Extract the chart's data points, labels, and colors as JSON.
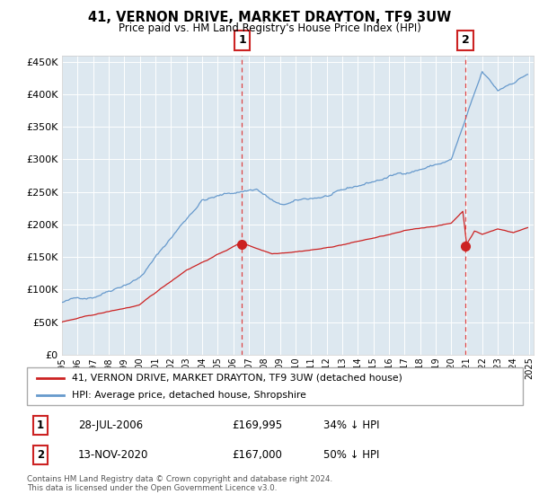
{
  "title": "41, VERNON DRIVE, MARKET DRAYTON, TF9 3UW",
  "subtitle": "Price paid vs. HM Land Registry's House Price Index (HPI)",
  "bg_color": "#ffffff",
  "plot_bg_color": "#dde8f0",
  "ylim": [
    0,
    460000
  ],
  "yticks": [
    0,
    50000,
    100000,
    150000,
    200000,
    250000,
    300000,
    350000,
    400000,
    450000
  ],
  "sale1_date": 2006.57,
  "sale1_price": 169995,
  "sale2_date": 2020.92,
  "sale2_price": 167000,
  "legend_red": "41, VERNON DRIVE, MARKET DRAYTON, TF9 3UW (detached house)",
  "legend_blue": "HPI: Average price, detached house, Shropshire",
  "row1_num": "1",
  "row1_date": "28-JUL-2006",
  "row1_price": "£169,995",
  "row1_hpi": "34% ↓ HPI",
  "row2_num": "2",
  "row2_date": "13-NOV-2020",
  "row2_price": "£167,000",
  "row2_hpi": "50% ↓ HPI",
  "footnote1": "Contains HM Land Registry data © Crown copyright and database right 2024.",
  "footnote2": "This data is licensed under the Open Government Licence v3.0.",
  "red_color": "#cc2222",
  "blue_color": "#6699cc",
  "red_marker_color": "#cc2222"
}
